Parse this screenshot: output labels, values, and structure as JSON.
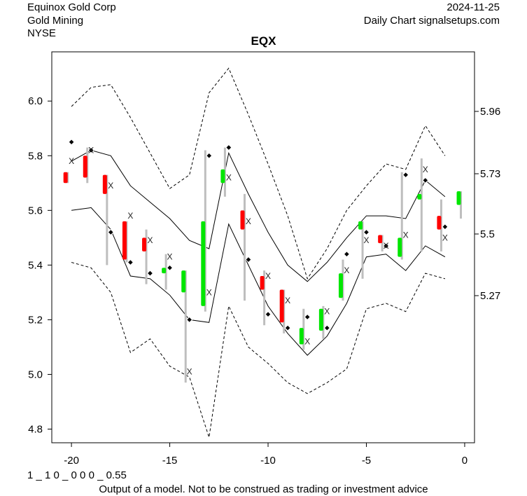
{
  "header": {
    "company": "Equinox Gold Corp",
    "industry": "Gold Mining",
    "exchange": "NYSE",
    "date": "2024-11-25",
    "source": "Daily Chart signalsetups.com"
  },
  "footer": {
    "model_code": "1 _ 1 0 _ 0 0 0 _ 0.55",
    "disclaimer": "Output of a model. Not to be construed as trading or investment advice"
  },
  "colors": {
    "up": "#00e600",
    "down": "#ff0000",
    "wick": "#bebebe",
    "band": "#000000"
  },
  "chart_data": {
    "type": "candlestick",
    "title": "EQX",
    "xlim": [
      -21,
      0.5
    ],
    "ylim_left": [
      4.75,
      6.18
    ],
    "x_ticks": [
      -20,
      -15,
      -10,
      -5,
      0
    ],
    "x_tick_labels": [
      "-20",
      "-15",
      "-10",
      "-5",
      "0"
    ],
    "y_left_ticks": [
      4.8,
      5.0,
      5.2,
      5.4,
      5.6,
      5.8,
      6.0
    ],
    "y_left_labels": [
      "4.8",
      "5.0",
      "5.2",
      "5.4",
      "5.6",
      "5.8",
      "6.0"
    ],
    "y_right_ticks": [
      5.27,
      5.5,
      5.73,
      5.96
    ],
    "y_right_labels": [
      "5.27",
      "5.5",
      "5.73",
      "5.96"
    ],
    "candles": [
      {
        "x": -20.3,
        "open": 5.74,
        "close": 5.7,
        "low": 5.7,
        "high": 5.74
      },
      {
        "x": -19.3,
        "open": 5.8,
        "close": 5.72,
        "low": 5.7,
        "high": 5.83
      },
      {
        "x": -18.3,
        "open": 5.73,
        "close": 5.66,
        "low": 5.4,
        "high": 5.73
      },
      {
        "x": -17.3,
        "open": 5.56,
        "close": 5.42,
        "low": 5.41,
        "high": 5.56
      },
      {
        "x": -16.3,
        "open": 5.5,
        "close": 5.45,
        "low": 5.33,
        "high": 5.53
      },
      {
        "x": -15.3,
        "open": 5.37,
        "close": 5.39,
        "low": 5.31,
        "high": 5.44
      },
      {
        "x": -14.3,
        "open": 5.3,
        "close": 5.38,
        "low": 4.97,
        "high": 5.38
      },
      {
        "x": -13.3,
        "open": 5.25,
        "close": 5.56,
        "low": 5.23,
        "high": 5.82
      },
      {
        "x": -12.3,
        "open": 5.7,
        "close": 5.75,
        "low": 5.65,
        "high": 5.83
      },
      {
        "x": -11.3,
        "open": 5.6,
        "close": 5.53,
        "low": 5.27,
        "high": 5.66
      },
      {
        "x": -10.3,
        "open": 5.36,
        "close": 5.31,
        "low": 5.18,
        "high": 5.38
      },
      {
        "x": -9.3,
        "open": 5.31,
        "close": 5.19,
        "low": 5.15,
        "high": 5.31
      },
      {
        "x": -8.3,
        "open": 5.11,
        "close": 5.17,
        "low": 5.09,
        "high": 5.24
      },
      {
        "x": -7.3,
        "open": 5.16,
        "close": 5.24,
        "low": 5.13,
        "high": 5.25
      },
      {
        "x": -6.3,
        "open": 5.28,
        "close": 5.37,
        "low": 5.27,
        "high": 5.42
      },
      {
        "x": -5.3,
        "open": 5.53,
        "close": 5.56,
        "low": 5.35,
        "high": 5.56
      },
      {
        "x": -4.3,
        "open": 5.51,
        "close": 5.48,
        "low": 5.45,
        "high": 5.51
      },
      {
        "x": -3.3,
        "open": 5.43,
        "close": 5.5,
        "low": 5.42,
        "high": 5.74
      },
      {
        "x": -2.3,
        "open": 5.64,
        "close": 5.66,
        "low": 5.45,
        "high": 5.79
      },
      {
        "x": -1.3,
        "open": 5.58,
        "close": 5.53,
        "low": 5.45,
        "high": 5.64
      },
      {
        "x": -0.3,
        "open": 5.62,
        "close": 5.67,
        "low": 5.57,
        "high": 5.67
      }
    ],
    "markers_diamond": [
      {
        "x": -20,
        "y": 5.85
      },
      {
        "x": -19,
        "y": 5.82
      },
      {
        "x": -18,
        "y": 5.52
      },
      {
        "x": -17,
        "y": 5.41
      },
      {
        "x": -16,
        "y": 5.37
      },
      {
        "x": -15,
        "y": 5.39
      },
      {
        "x": -14,
        "y": 5.2
      },
      {
        "x": -13,
        "y": 5.8
      },
      {
        "x": -12,
        "y": 5.83
      },
      {
        "x": -11,
        "y": 5.42
      },
      {
        "x": -10,
        "y": 5.22
      },
      {
        "x": -9,
        "y": 5.17
      },
      {
        "x": -8,
        "y": 5.21
      },
      {
        "x": -7,
        "y": 5.17
      },
      {
        "x": -6,
        "y": 5.44
      },
      {
        "x": -5,
        "y": 5.52
      },
      {
        "x": -4,
        "y": 5.47
      },
      {
        "x": -3,
        "y": 5.73
      },
      {
        "x": -2,
        "y": 5.71
      },
      {
        "x": -1,
        "y": 5.54
      }
    ],
    "markers_x": [
      {
        "x": -20,
        "y": 5.78
      },
      {
        "x": -19,
        "y": 5.82
      },
      {
        "x": -18,
        "y": 5.69
      },
      {
        "x": -17,
        "y": 5.58
      },
      {
        "x": -16,
        "y": 5.49
      },
      {
        "x": -15,
        "y": 5.43
      },
      {
        "x": -14,
        "y": 5.01
      },
      {
        "x": -13,
        "y": 5.3
      },
      {
        "x": -12,
        "y": 5.72
      },
      {
        "x": -11,
        "y": 5.56
      },
      {
        "x": -10,
        "y": 5.36
      },
      {
        "x": -9,
        "y": 5.27
      },
      {
        "x": -8,
        "y": 5.12
      },
      {
        "x": -7,
        "y": 5.23
      },
      {
        "x": -6,
        "y": 5.38
      },
      {
        "x": -5,
        "y": 5.49
      },
      {
        "x": -4,
        "y": 5.47
      },
      {
        "x": -3,
        "y": 5.51
      },
      {
        "x": -2,
        "y": 5.75
      },
      {
        "x": -1,
        "y": 5.5
      }
    ],
    "band_x": [
      -20,
      -19,
      -18,
      -17,
      -16,
      -15,
      -14,
      -13,
      -12,
      -11,
      -10,
      -9,
      -8,
      -7,
      -6,
      -5,
      -4,
      -3,
      -2,
      -1
    ],
    "band_inner_upper": [
      5.78,
      5.82,
      5.8,
      5.69,
      5.63,
      5.57,
      5.49,
      5.46,
      5.81,
      5.66,
      5.52,
      5.4,
      5.34,
      5.41,
      5.5,
      5.58,
      5.58,
      5.57,
      5.71,
      5.65
    ],
    "band_inner_lower": [
      5.6,
      5.61,
      5.53,
      5.36,
      5.35,
      5.29,
      5.2,
      5.19,
      5.55,
      5.4,
      5.25,
      5.15,
      5.07,
      5.14,
      5.26,
      5.43,
      5.44,
      5.38,
      5.47,
      5.43
    ],
    "band_outer_upper": [
      5.98,
      6.05,
      6.06,
      5.94,
      5.81,
      5.68,
      5.73,
      6.03,
      6.12,
      5.95,
      5.77,
      5.58,
      5.35,
      5.46,
      5.6,
      5.69,
      5.77,
      5.75,
      5.91,
      5.8
    ],
    "band_outer_lower": [
      5.41,
      5.39,
      5.3,
      5.08,
      5.13,
      5.03,
      4.99,
      4.77,
      5.25,
      5.1,
      5.04,
      4.97,
      4.93,
      4.97,
      5.02,
      5.24,
      5.26,
      5.23,
      5.37,
      5.35
    ]
  }
}
